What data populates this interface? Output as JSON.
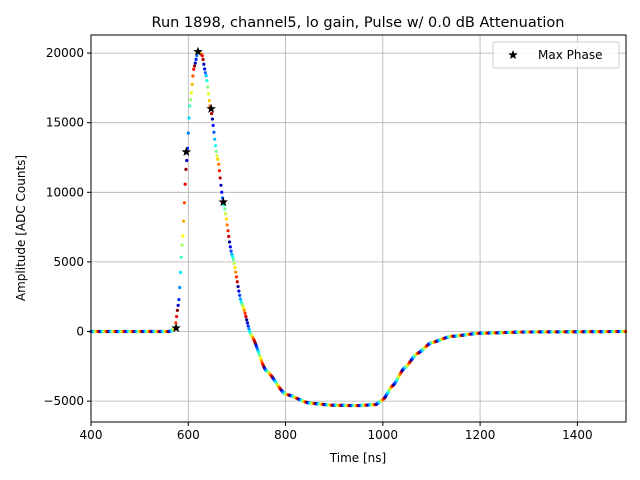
{
  "chart_data": {
    "type": "scatter",
    "title": "Run 1898, channel5, lo gain, Pulse w/ 0.0 dB Attenuation",
    "xlabel": "Time [ns]",
    "ylabel": "Amplitude [ADC Counts]",
    "xlim": [
      400,
      1500
    ],
    "ylim": [
      -6500,
      21300
    ],
    "xticks": [
      400,
      600,
      800,
      1000,
      1200,
      1400
    ],
    "yticks": [
      -5000,
      0,
      5000,
      10000,
      15000,
      20000
    ],
    "xtick_labels": [
      "400",
      "600",
      "800",
      "1000",
      "1200",
      "1400"
    ],
    "ytick_labels": [
      "−5000",
      "0",
      "5000",
      "10000",
      "15000",
      "20000"
    ],
    "grid": true,
    "legend": {
      "position": "top-right",
      "entries": [
        "Max Phase"
      ]
    },
    "pulse_curve": {
      "description_color": "colormap by sampling phase (jet)",
      "points": [
        [
          400,
          0
        ],
        [
          560,
          0
        ],
        [
          572,
          150
        ],
        [
          580,
          2000
        ],
        [
          588,
          6500
        ],
        [
          596,
          12000
        ],
        [
          604,
          16500
        ],
        [
          612,
          19000
        ],
        [
          620,
          20100
        ],
        [
          628,
          19900
        ],
        [
          636,
          18500
        ],
        [
          646,
          16000
        ],
        [
          660,
          12500
        ],
        [
          672,
          9300
        ],
        [
          690,
          5500
        ],
        [
          710,
          2000
        ],
        [
          730,
          -300
        ],
        [
          760,
          -2800
        ],
        [
          800,
          -4500
        ],
        [
          850,
          -5150
        ],
        [
          900,
          -5300
        ],
        [
          950,
          -5320
        ],
        [
          985,
          -5250
        ],
        [
          1000,
          -4900
        ],
        [
          1020,
          -3900
        ],
        [
          1045,
          -2600
        ],
        [
          1070,
          -1600
        ],
        [
          1100,
          -800
        ],
        [
          1140,
          -350
        ],
        [
          1200,
          -120
        ],
        [
          1300,
          -30
        ],
        [
          1500,
          0
        ]
      ]
    },
    "series": [
      {
        "name": "Max Phase",
        "marker": "star",
        "color": "#000000",
        "points": [
          [
            575,
            250
          ],
          [
            596,
            12900
          ],
          [
            620,
            20100
          ],
          [
            647,
            16000
          ],
          [
            672,
            9300
          ]
        ]
      }
    ]
  }
}
